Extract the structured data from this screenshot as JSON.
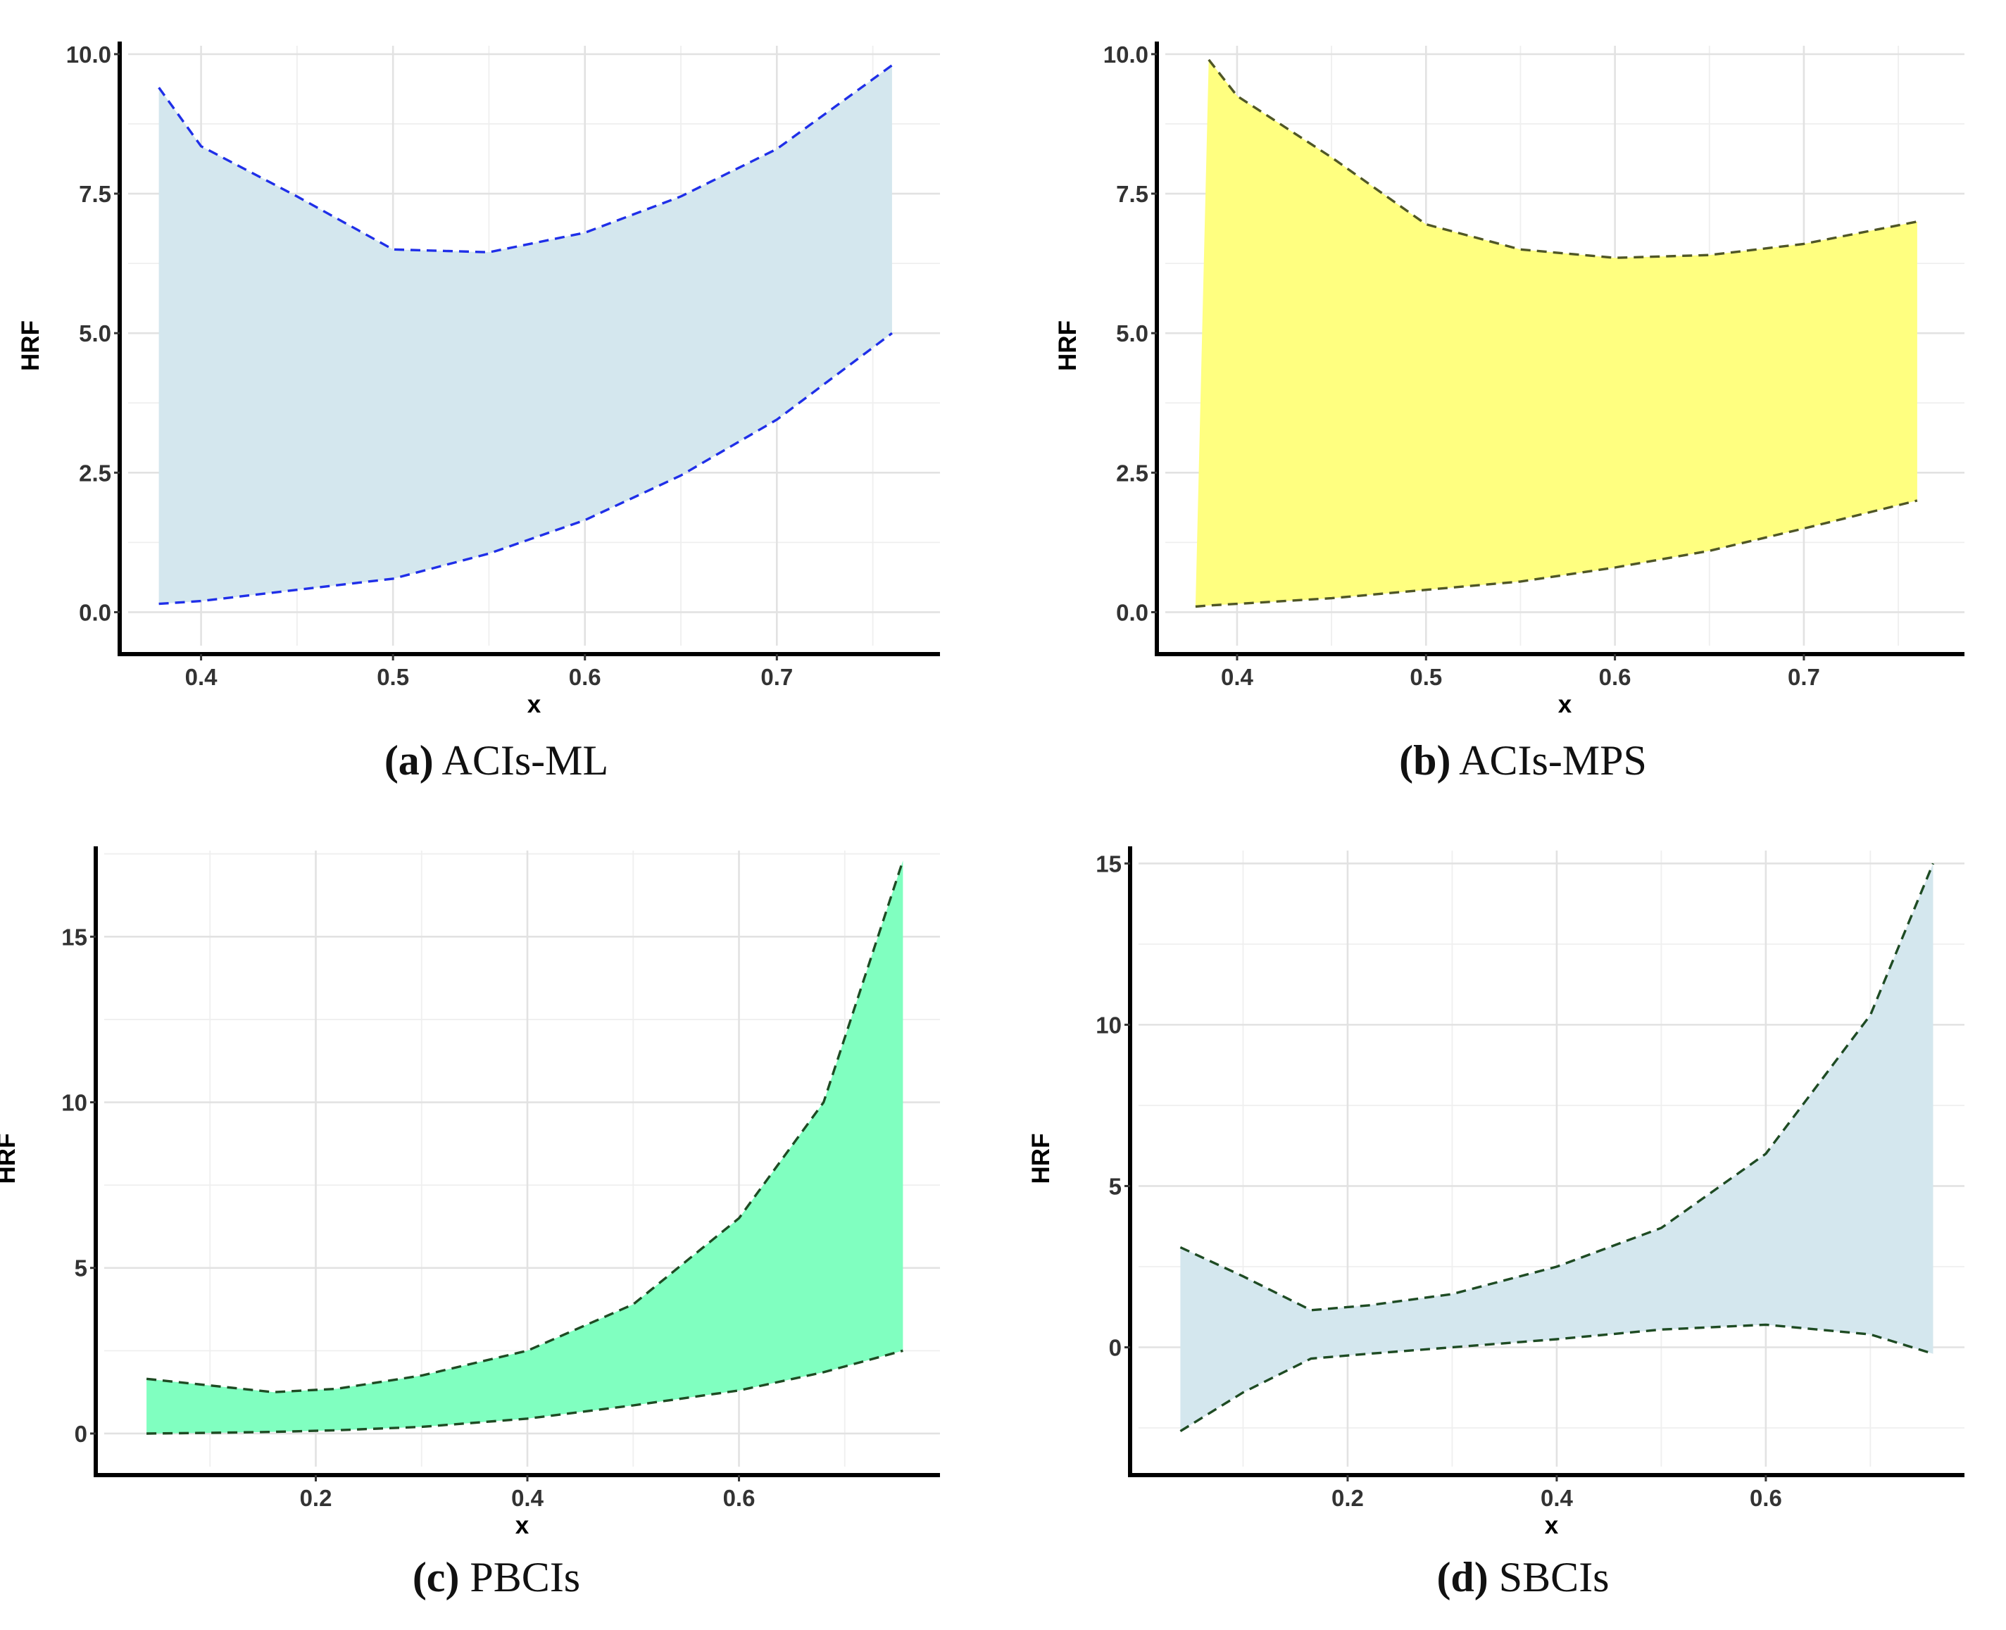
{
  "figure": "HRF confidence interval bands",
  "chart_data": [
    {
      "type": "area",
      "id": "a",
      "caption_letter": "(a)",
      "caption_text": "ACIs-ML",
      "xlabel": "x",
      "ylabel": "HRF",
      "xlim": [
        0.362,
        0.785
      ],
      "ylim": [
        -0.6,
        10.15
      ],
      "xticks": [
        0.4,
        0.5,
        0.6,
        0.7
      ],
      "xtick_labels": [
        "0.4",
        "0.5",
        "0.6",
        "0.7"
      ],
      "yticks": [
        0,
        2.5,
        5,
        7.5,
        10
      ],
      "ytick_labels": [
        "0.0",
        "2.5",
        "5.0",
        "7.5",
        "10.0"
      ],
      "fill_color": "#d4e7ee",
      "line_color": "#1f2fe8",
      "line_style": "dashed",
      "grid": true,
      "series": [
        {
          "name": "upper",
          "x": [
            0.378,
            0.4,
            0.45,
            0.5,
            0.55,
            0.6,
            0.65,
            0.7,
            0.76
          ],
          "values": [
            9.4,
            8.35,
            7.45,
            6.5,
            6.45,
            6.8,
            7.45,
            8.3,
            9.8
          ]
        },
        {
          "name": "lower",
          "x": [
            0.378,
            0.4,
            0.45,
            0.5,
            0.55,
            0.6,
            0.65,
            0.7,
            0.76
          ],
          "values": [
            0.15,
            0.2,
            0.4,
            0.6,
            1.05,
            1.65,
            2.45,
            3.45,
            5.0
          ]
        }
      ]
    },
    {
      "type": "area",
      "id": "b",
      "caption_letter": "(b)",
      "caption_text": "ACIs-MPS",
      "xlabel": "x",
      "ylabel": "HRF",
      "xlim": [
        0.362,
        0.785
      ],
      "ylim": [
        -0.6,
        10.15
      ],
      "xticks": [
        0.4,
        0.5,
        0.6,
        0.7
      ],
      "xtick_labels": [
        "0.4",
        "0.5",
        "0.6",
        "0.7"
      ],
      "yticks": [
        0,
        2.5,
        5,
        7.5,
        10
      ],
      "ytick_labels": [
        "0.0",
        "2.5",
        "5.0",
        "7.5",
        "10.0"
      ],
      "fill_color": "#ffff80",
      "line_color": "#4f5626",
      "line_style": "dashed",
      "grid": true,
      "series": [
        {
          "name": "upper",
          "x": [
            0.385,
            0.4,
            0.45,
            0.5,
            0.55,
            0.6,
            0.65,
            0.7,
            0.76
          ],
          "values": [
            9.9,
            9.25,
            8.15,
            6.95,
            6.5,
            6.35,
            6.4,
            6.6,
            7.0
          ]
        },
        {
          "name": "lower",
          "x": [
            0.378,
            0.385,
            0.4,
            0.45,
            0.5,
            0.55,
            0.6,
            0.65,
            0.7,
            0.76
          ],
          "values": [
            0.1,
            0.12,
            0.15,
            0.25,
            0.4,
            0.55,
            0.8,
            1.1,
            1.5,
            2.0
          ]
        }
      ]
    },
    {
      "type": "area",
      "id": "c",
      "caption_letter": "(c)",
      "caption_text": "PBCIs",
      "xlabel": "x",
      "ylabel": "HRF",
      "xlim": [
        0.0,
        0.79
      ],
      "ylim": [
        -1.0,
        17.6
      ],
      "xticks": [
        0.2,
        0.4,
        0.6
      ],
      "xtick_labels": [
        "0.2",
        "0.4",
        "0.6"
      ],
      "yticks": [
        0,
        5,
        10,
        15
      ],
      "ytick_labels": [
        "0",
        "5",
        "10",
        "15"
      ],
      "fill_color": "#80ffc0",
      "line_color": "#1e4b23",
      "line_style": "dashed",
      "grid": true,
      "series": [
        {
          "name": "upper",
          "x": [
            0.04,
            0.1,
            0.16,
            0.22,
            0.3,
            0.4,
            0.5,
            0.6,
            0.68,
            0.755
          ],
          "values": [
            1.65,
            1.45,
            1.25,
            1.35,
            1.75,
            2.5,
            3.9,
            6.5,
            10.0,
            17.3
          ]
        },
        {
          "name": "lower",
          "x": [
            0.04,
            0.1,
            0.16,
            0.22,
            0.3,
            0.4,
            0.5,
            0.6,
            0.68,
            0.755
          ],
          "values": [
            0.0,
            0.02,
            0.05,
            0.1,
            0.2,
            0.45,
            0.85,
            1.3,
            1.85,
            2.5
          ]
        }
      ]
    },
    {
      "type": "area",
      "id": "d",
      "caption_letter": "(d)",
      "caption_text": "SBCIs",
      "xlabel": "x",
      "ylabel": "HRF",
      "xlim": [
        0.0,
        0.79
      ],
      "ylim": [
        -3.7,
        15.4
      ],
      "xticks": [
        0.2,
        0.4,
        0.6
      ],
      "xtick_labels": [
        "0.2",
        "0.4",
        "0.6"
      ],
      "yticks": [
        0,
        5,
        10,
        15
      ],
      "ytick_labels": [
        "0",
        "5",
        "10",
        "15"
      ],
      "fill_color": "#d4e7ee",
      "line_color": "#1e4b23",
      "line_style": "dashed",
      "grid": true,
      "series": [
        {
          "name": "upper",
          "x": [
            0.04,
            0.1,
            0.165,
            0.22,
            0.3,
            0.4,
            0.5,
            0.6,
            0.7,
            0.76
          ],
          "values": [
            3.1,
            2.2,
            1.15,
            1.3,
            1.65,
            2.5,
            3.7,
            6.0,
            10.3,
            15.0
          ]
        },
        {
          "name": "lower",
          "x": [
            0.04,
            0.1,
            0.165,
            0.22,
            0.3,
            0.4,
            0.5,
            0.6,
            0.7,
            0.76
          ],
          "values": [
            -2.6,
            -1.4,
            -0.35,
            -0.2,
            0.0,
            0.25,
            0.55,
            0.7,
            0.4,
            -0.2
          ]
        }
      ]
    }
  ]
}
